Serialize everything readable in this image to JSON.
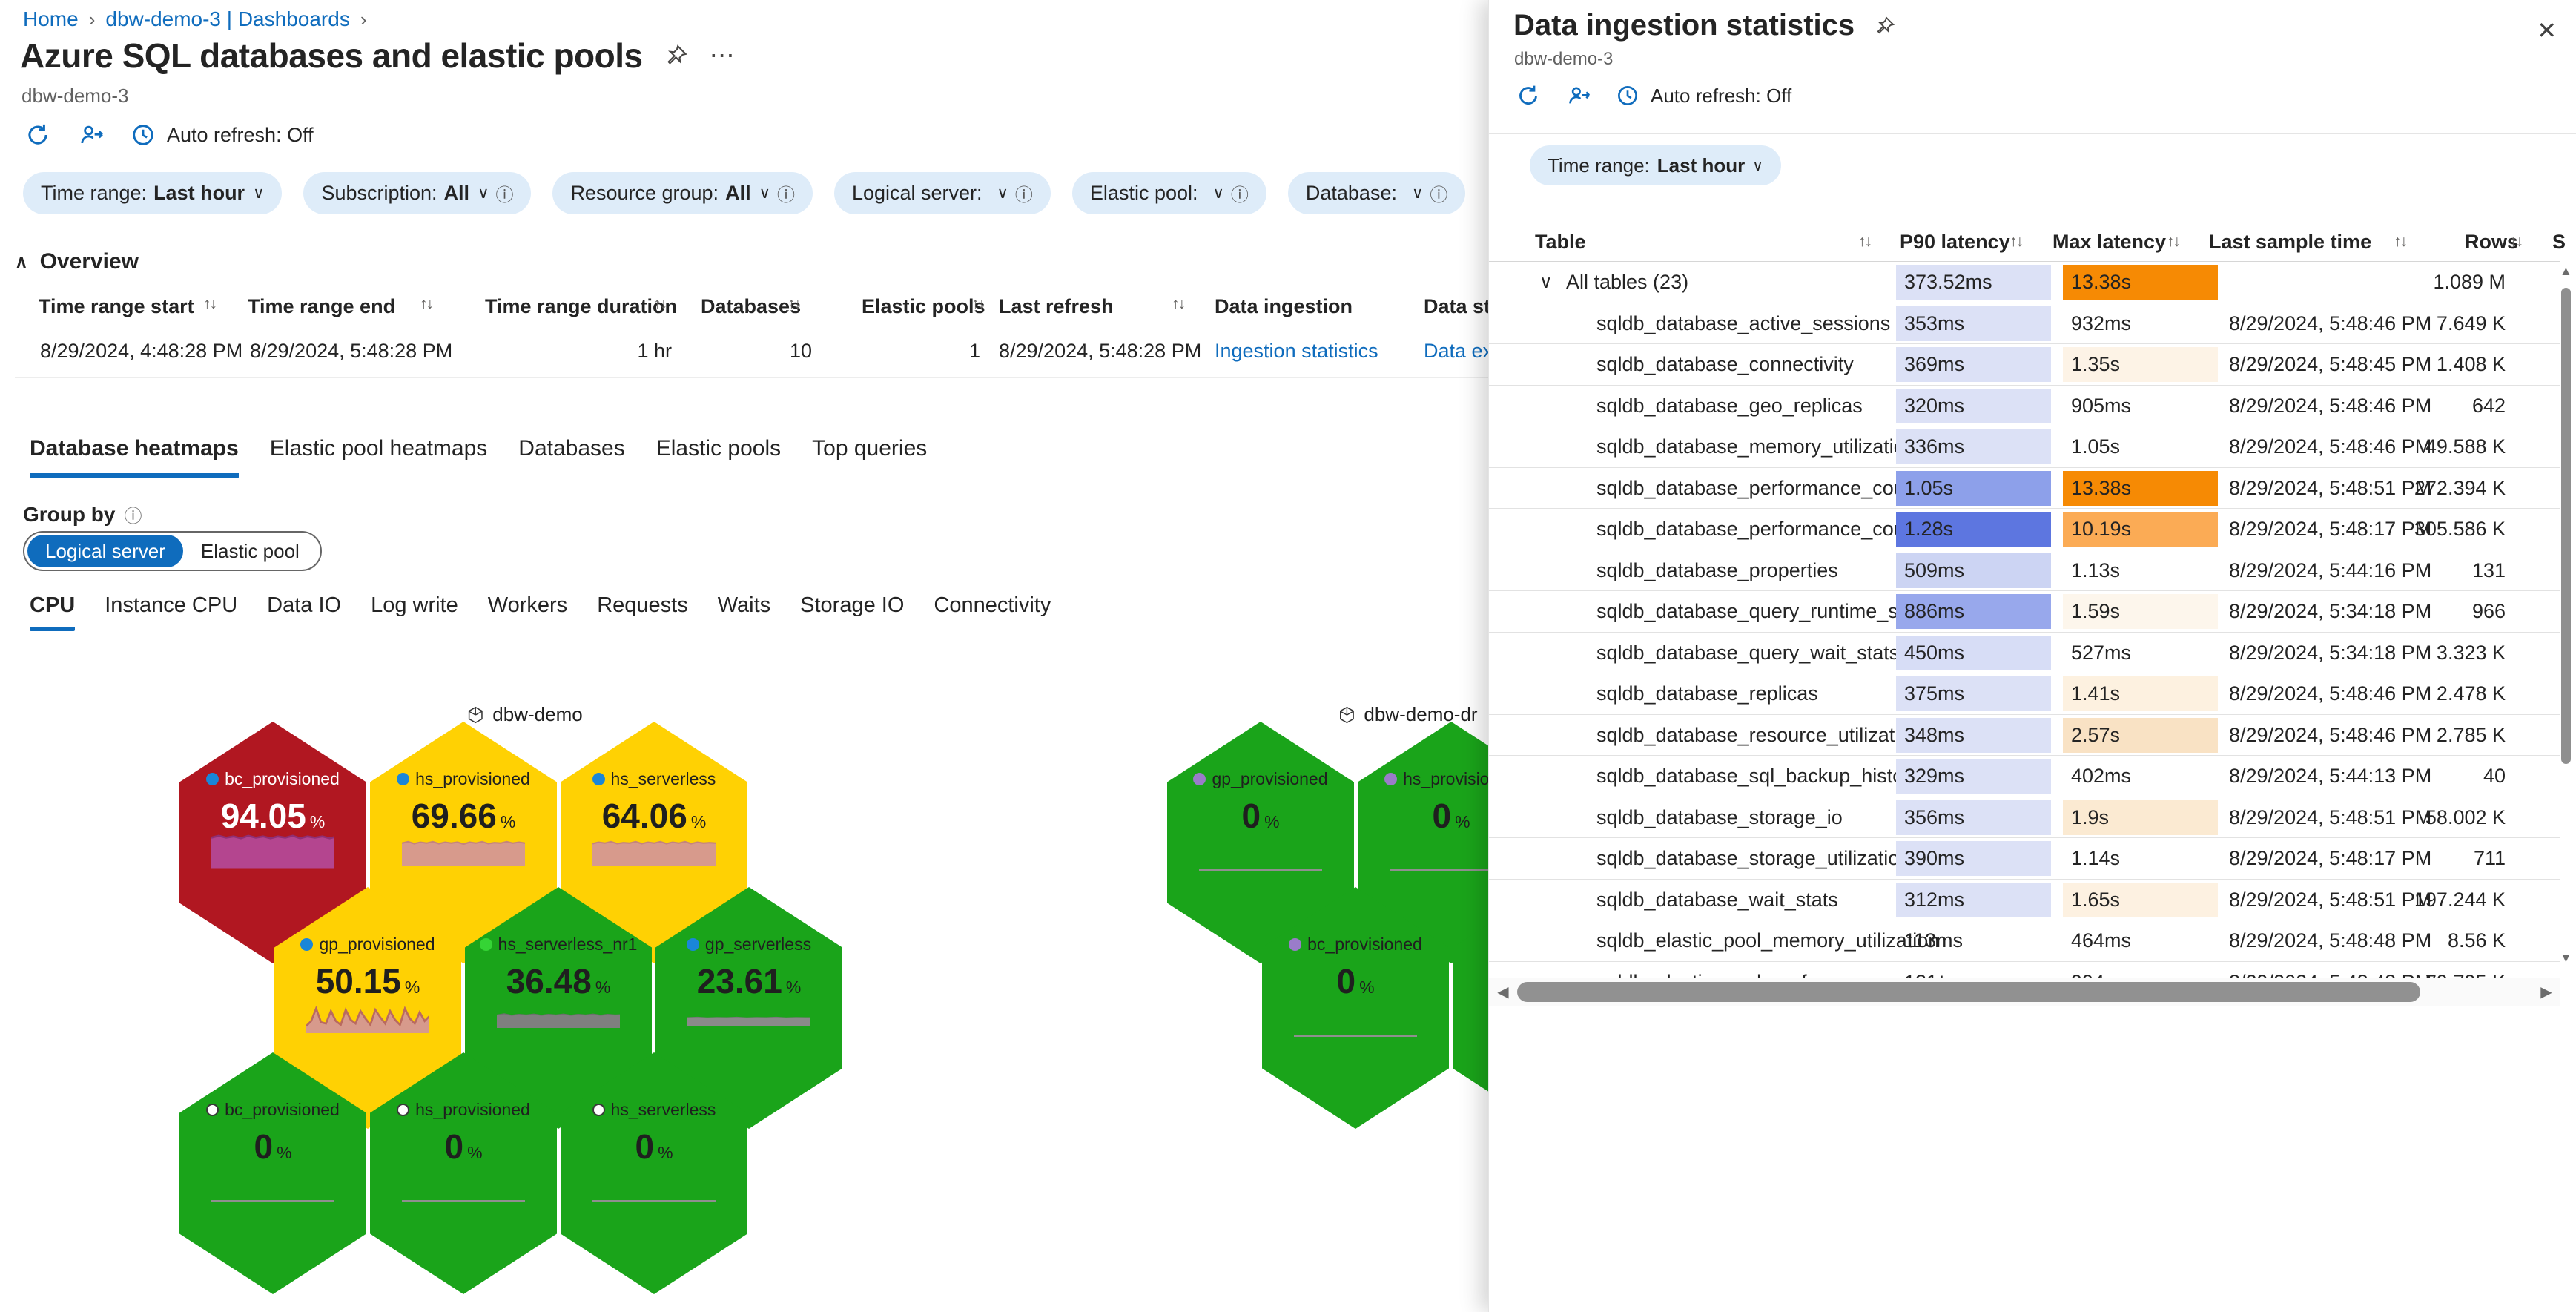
{
  "icons": {
    "chevron_down": "∨",
    "chevron_up": "∧",
    "breadcrumb_sep": "›",
    "info": "ⓘ",
    "sort": "↑↓",
    "close": "✕",
    "ellipsis": "⋯",
    "scroll_up": "▲",
    "scroll_down": "▼",
    "scroll_left": "◀",
    "scroll_right": "▶"
  },
  "breadcrumb": {
    "items": [
      {
        "label": "Home"
      },
      {
        "label": "dbw-demo-3 | Dashboards"
      }
    ]
  },
  "header": {
    "title": "Azure SQL databases and elastic pools",
    "subtitle": "dbw-demo-3",
    "auto_refresh_label": "Auto refresh: Off"
  },
  "filters": [
    {
      "label": "Time range:",
      "value": "Last hour",
      "info": false
    },
    {
      "label": "Subscription:",
      "value": "All",
      "info": true
    },
    {
      "label": "Resource group:",
      "value": "All",
      "info": true
    },
    {
      "label": "Logical server:",
      "value": "<unset>",
      "info": true
    },
    {
      "label": "Elastic pool:",
      "value": "<unset>",
      "info": true
    },
    {
      "label": "Database:",
      "value": "<unset>",
      "info": true
    }
  ],
  "overview": {
    "title": "Overview",
    "columns": [
      "Time range start",
      "Time range end",
      "Time range duration",
      "Databases",
      "Elastic pools",
      "Last refresh",
      "Data ingestion",
      "Data storage"
    ],
    "row": {
      "time_range_start": "8/29/2024, 4:48:28 PM",
      "time_range_end": "8/29/2024, 5:48:28 PM",
      "time_range_duration": "1 hr",
      "databases": "10",
      "elastic_pools": "1",
      "last_refresh": "8/29/2024, 5:48:28 PM",
      "data_ingestion": "Ingestion statistics",
      "data_storage": "Data explorer"
    }
  },
  "tabs": {
    "active_index": 0,
    "items": [
      "Database heatmaps",
      "Elastic pool heatmaps",
      "Databases",
      "Elastic pools",
      "Top queries"
    ]
  },
  "group_by": {
    "label": "Group by",
    "selected": "Logical server",
    "options": [
      "Logical server",
      "Elastic pool"
    ]
  },
  "metric_tabs": {
    "active_index": 0,
    "items": [
      "CPU",
      "Instance CPU",
      "Data IO",
      "Log write",
      "Workers",
      "Requests",
      "Waits",
      "Storage IO",
      "Connectivity"
    ]
  },
  "heatmap": {
    "clusters": [
      {
        "name": "dbw-demo",
        "hexes": [
          {
            "row": 0,
            "col": 0,
            "label": "bc_provisioned",
            "value": "94.05",
            "unit": "%",
            "fill": "#b11721",
            "text_color": "#ffffff",
            "dot": "#1a86d9",
            "spark": "band-magenta"
          },
          {
            "row": 0,
            "col": 1,
            "label": "hs_provisioned",
            "value": "69.66",
            "unit": "%",
            "fill": "#ffd103",
            "text_color": "#1f1f1f",
            "dot": "#1a86d9",
            "spark": "band-salmon"
          },
          {
            "row": 0,
            "col": 2,
            "label": "hs_serverless",
            "value": "64.06",
            "unit": "%",
            "fill": "#ffd103",
            "text_color": "#1f1f1f",
            "dot": "#1a86d9",
            "spark": "band-salmon2"
          },
          {
            "row": 1,
            "col": 0,
            "label": "gp_provisioned",
            "value": "50.15",
            "unit": "%",
            "fill": "#ffd103",
            "text_color": "#1f1f1f",
            "dot": "#1a86d9",
            "spark": "spiky-salmon"
          },
          {
            "row": 1,
            "col": 1,
            "label": "hs_serverless_nr1",
            "value": "36.48",
            "unit": "%",
            "fill": "#1aa41a",
            "text_color": "#1f1f1f",
            "dot": "#35d435",
            "spark": "band-gray"
          },
          {
            "row": 1,
            "col": 2,
            "label": "gp_serverless",
            "value": "23.61",
            "unit": "%",
            "fill": "#1aa41a",
            "text_color": "#1f1f1f",
            "dot": "#1a86d9",
            "spark": "band-gray-thin"
          },
          {
            "row": 2,
            "col": 0,
            "label": "bc_provisioned",
            "value": "0",
            "unit": "%",
            "fill": "#1aa41a",
            "text_color": "#1f1f1f",
            "dot": "#ffffff",
            "spark": "line"
          },
          {
            "row": 2,
            "col": 1,
            "label": "hs_provisioned",
            "value": "0",
            "unit": "%",
            "fill": "#1aa41a",
            "text_color": "#1f1f1f",
            "dot": "#ffffff",
            "spark": "line"
          },
          {
            "row": 2,
            "col": 2,
            "label": "hs_serverless",
            "value": "0",
            "unit": "%",
            "fill": "#1aa41a",
            "text_color": "#1f1f1f",
            "dot": "#ffffff",
            "spark": "line"
          }
        ]
      },
      {
        "name": "dbw-demo-dr",
        "hexes": [
          {
            "row": 0,
            "col": 0,
            "label": "gp_provisioned",
            "value": "0",
            "unit": "%",
            "fill": "#1aa41a",
            "text_color": "#1f1f1f",
            "dot": "#9a7cc9",
            "spark": "line"
          },
          {
            "row": 0,
            "col": 1,
            "label": "hs_provisioned",
            "value": "0",
            "unit": "%",
            "fill": "#1aa41a",
            "text_color": "#1f1f1f",
            "dot": "#9a7cc9",
            "spark": "line"
          },
          {
            "row": 1,
            "col": 0,
            "label": "bc_provisioned",
            "value": "0",
            "unit": "%",
            "fill": "#1aa41a",
            "text_color": "#1f1f1f",
            "dot": "#9a7cc9",
            "spark": "line"
          },
          {
            "row": 1,
            "col": 1,
            "label": "",
            "value": "",
            "unit": "",
            "fill": "#1aa41a",
            "text_color": "#1f1f1f",
            "dot": "",
            "spark": "none"
          }
        ]
      }
    ]
  },
  "panel": {
    "title": "Data ingestion statistics",
    "subtitle": "dbw-demo-3",
    "auto_refresh_label": "Auto refresh: Off",
    "time_filter": {
      "label": "Time range:",
      "value": "Last hour"
    },
    "table": {
      "columns": [
        {
          "label": "Table"
        },
        {
          "label": "P90 latency"
        },
        {
          "label": "Max latency"
        },
        {
          "label": "Last sample time"
        },
        {
          "label": "Rows"
        },
        {
          "label": "S"
        }
      ],
      "rows": [
        {
          "name": "All tables (23)",
          "group": true,
          "p90": "373.52ms",
          "p90_bg": "#dce1f6",
          "max": "13.38s",
          "max_bg": "#f68a04",
          "time": "",
          "rows": "1.089 M"
        },
        {
          "name": "sqldb_database_active_sessions",
          "p90": "353ms",
          "p90_bg": "#dce1f6",
          "max": "932ms",
          "max_bg": "",
          "time": "8/29/2024, 5:48:46 PM",
          "rows": "7.649 K"
        },
        {
          "name": "sqldb_database_connectivity",
          "p90": "369ms",
          "p90_bg": "#dce1f6",
          "max": "1.35s",
          "max_bg": "#fdf3e6",
          "time": "8/29/2024, 5:48:45 PM",
          "rows": "1.408 K"
        },
        {
          "name": "sqldb_database_geo_replicas",
          "p90": "320ms",
          "p90_bg": "#dce1f6",
          "max": "905ms",
          "max_bg": "",
          "time": "8/29/2024, 5:48:46 PM",
          "rows": "642"
        },
        {
          "name": "sqldb_database_memory_utilization",
          "p90": "336ms",
          "p90_bg": "#dce1f6",
          "max": "1.05s",
          "max_bg": "",
          "time": "8/29/2024, 5:48:46 PM",
          "rows": "49.588 K"
        },
        {
          "name": "sqldb_database_performance_counters",
          "p90": "1.05s",
          "p90_bg": "#8da0ea",
          "max": "13.38s",
          "max_bg": "#f68a04",
          "time": "8/29/2024, 5:48:51 PM",
          "rows": "272.394 K"
        },
        {
          "name": "sqldb_database_performance_counters",
          "p90": "1.28s",
          "p90_bg": "#5d76e0",
          "max": "10.19s",
          "max_bg": "#fbab55",
          "time": "8/29/2024, 5:48:17 PM",
          "rows": "305.586 K"
        },
        {
          "name": "sqldb_database_properties",
          "p90": "509ms",
          "p90_bg": "#ccd4f3",
          "max": "1.13s",
          "max_bg": "",
          "time": "8/29/2024, 5:44:16 PM",
          "rows": "131"
        },
        {
          "name": "sqldb_database_query_runtime_stats",
          "p90": "886ms",
          "p90_bg": "#98a8ec",
          "max": "1.59s",
          "max_bg": "#fdf6ec",
          "time": "8/29/2024, 5:34:18 PM",
          "rows": "966"
        },
        {
          "name": "sqldb_database_query_wait_stats",
          "p90": "450ms",
          "p90_bg": "#d7ddf6",
          "max": "527ms",
          "max_bg": "",
          "time": "8/29/2024, 5:34:18 PM",
          "rows": "3.323 K"
        },
        {
          "name": "sqldb_database_replicas",
          "p90": "375ms",
          "p90_bg": "#dce1f6",
          "max": "1.41s",
          "max_bg": "#fdf1e0",
          "time": "8/29/2024, 5:48:46 PM",
          "rows": "2.478 K"
        },
        {
          "name": "sqldb_database_resource_utilization",
          "p90": "348ms",
          "p90_bg": "#dce1f6",
          "max": "2.57s",
          "max_bg": "#f9e2c4",
          "time": "8/29/2024, 5:48:46 PM",
          "rows": "2.785 K"
        },
        {
          "name": "sqldb_database_sql_backup_history",
          "p90": "329ms",
          "p90_bg": "#dce1f6",
          "max": "402ms",
          "max_bg": "",
          "time": "8/29/2024, 5:44:13 PM",
          "rows": "40"
        },
        {
          "name": "sqldb_database_storage_io",
          "p90": "356ms",
          "p90_bg": "#dce1f6",
          "max": "1.9s",
          "max_bg": "#fbead2",
          "time": "8/29/2024, 5:48:51 PM",
          "rows": "58.002 K"
        },
        {
          "name": "sqldb_database_storage_utilization",
          "p90": "390ms",
          "p90_bg": "#dce1f6",
          "max": "1.14s",
          "max_bg": "",
          "time": "8/29/2024, 5:48:17 PM",
          "rows": "711"
        },
        {
          "name": "sqldb_database_wait_stats",
          "p90": "312ms",
          "p90_bg": "#dce1f6",
          "max": "1.65s",
          "max_bg": "#fdf1e1",
          "time": "8/29/2024, 5:48:51 PM",
          "rows": "197.244 K"
        },
        {
          "name": "sqldb_elastic_pool_memory_utilization",
          "p90": "113ms",
          "p90_bg": "",
          "max": "464ms",
          "max_bg": "",
          "time": "8/29/2024, 5:48:48 PM",
          "rows": "8.56 K"
        },
        {
          "name": "sqldb_elastic_pool_performance_counters",
          "p90": "131ms",
          "p90_bg": "",
          "max": "994ms",
          "max_bg": "",
          "time": "8/29/2024, 5:48:48 PM",
          "rows": "79.795 K",
          "partial": true
        }
      ]
    }
  },
  "colors": {
    "accent_blue": "#0f6cbd",
    "pill_bg": "#deecf9",
    "hex_red": "#b11721",
    "hex_yellow": "#ffd103",
    "hex_green": "#1aa41a",
    "heat_orange": "#f68a04",
    "heat_blue": "#5d76e0",
    "heat_lavender": "#dce1f6"
  }
}
